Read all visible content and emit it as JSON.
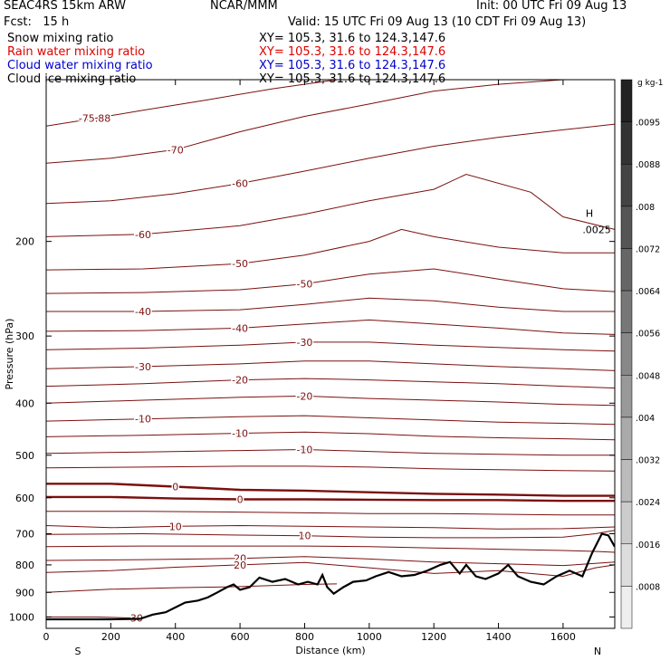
{
  "header": {
    "model": "SEAC4RS 15km ARW",
    "center": "NCAR/MMM",
    "init": "Init: 00 UTC Fri 09 Aug 13",
    "fcst": "Fcst:   15 h",
    "valid": "Valid: 15 UTC Fri 09 Aug 13 (10 CDT Fri 09 Aug 13)",
    "fields": [
      {
        "name": "Snow mixing ratio",
        "xy": "XY= 105.3, 31.6 to 124.3,147.6",
        "color": "#000000"
      },
      {
        "name": "Rain water mixing ratio",
        "xy": "XY= 105.3, 31.6 to 124.3,147.6",
        "color": "#e00000"
      },
      {
        "name": "Cloud water mixing ratio",
        "xy": "XY= 105.3, 31.6 to 124.3,147.6",
        "color": "#0000cc"
      },
      {
        "name": "Cloud ice mixing ratio",
        "xy": "XY= 105.3, 31.6 to 124.3,147.6",
        "color": "#000000"
      }
    ]
  },
  "chart_data": {
    "type": "cross-section contour",
    "xlabel": "Distance (km)",
    "ylabel": "Pressure (hPa)",
    "xlim": [
      0,
      1760
    ],
    "ylim": [
      1050,
      100
    ],
    "x_ticks": [
      0,
      200,
      400,
      600,
      800,
      1000,
      1200,
      1400,
      1600
    ],
    "y_ticks": [
      200,
      300,
      400,
      500,
      600,
      700,
      800,
      900,
      1000
    ],
    "end_labels": {
      "left": "S",
      "right": "N"
    },
    "contour_color": "#7a1010",
    "contours": [
      {
        "label": "-75.88",
        "pts": [
          [
            0,
            122
          ],
          [
            150,
            118
          ],
          [
            300,
            114
          ],
          [
            500,
            109
          ],
          [
            700,
            104
          ],
          [
            900,
            100
          ]
        ]
      },
      {
        "label": "-70",
        "pts": [
          [
            0,
            143
          ],
          [
            200,
            140
          ],
          [
            400,
            135
          ],
          [
            600,
            125
          ],
          [
            800,
            117
          ],
          [
            1000,
            111
          ],
          [
            1200,
            105
          ],
          [
            1400,
            102
          ],
          [
            1600,
            100
          ]
        ]
      },
      {
        "label": "-60",
        "pts": [
          [
            0,
            170
          ],
          [
            200,
            168
          ],
          [
            400,
            163
          ],
          [
            600,
            156
          ],
          [
            800,
            148
          ],
          [
            1000,
            140
          ],
          [
            1200,
            133
          ],
          [
            1400,
            128
          ],
          [
            1600,
            124
          ],
          [
            1760,
            121
          ]
        ]
      },
      {
        "label": "-60",
        "pts": [
          [
            0,
            196
          ],
          [
            300,
            194
          ],
          [
            600,
            187
          ],
          [
            800,
            178
          ],
          [
            1000,
            168
          ],
          [
            1200,
            160
          ],
          [
            1300,
            150
          ],
          [
            1500,
            162
          ],
          [
            1600,
            180
          ],
          [
            1760,
            190
          ]
        ]
      },
      {
        "label": "-50",
        "pts": [
          [
            0,
            226
          ],
          [
            300,
            225
          ],
          [
            600,
            220
          ],
          [
            800,
            212
          ],
          [
            1000,
            200
          ],
          [
            1100,
            190
          ],
          [
            1200,
            196
          ],
          [
            1400,
            205
          ],
          [
            1600,
            210
          ],
          [
            1760,
            210
          ]
        ]
      },
      {
        "label": "-50",
        "pts": [
          [
            0,
            250
          ],
          [
            300,
            249
          ],
          [
            600,
            246
          ],
          [
            800,
            240
          ],
          [
            1000,
            230
          ],
          [
            1200,
            225
          ],
          [
            1400,
            235
          ],
          [
            1600,
            245
          ],
          [
            1760,
            248
          ]
        ]
      },
      {
        "label": "-40",
        "pts": [
          [
            0,
            270
          ],
          [
            300,
            270
          ],
          [
            600,
            268
          ],
          [
            800,
            262
          ],
          [
            1000,
            255
          ],
          [
            1200,
            258
          ],
          [
            1400,
            265
          ],
          [
            1600,
            270
          ],
          [
            1760,
            270
          ]
        ]
      },
      {
        "label": "-40",
        "pts": [
          [
            0,
            294
          ],
          [
            300,
            293
          ],
          [
            600,
            290
          ],
          [
            800,
            285
          ],
          [
            1000,
            280
          ],
          [
            1200,
            285
          ],
          [
            1400,
            290
          ],
          [
            1600,
            296
          ],
          [
            1760,
            298
          ]
        ]
      },
      {
        "label": "-30",
        "pts": [
          [
            0,
            318
          ],
          [
            300,
            316
          ],
          [
            600,
            312
          ],
          [
            800,
            308
          ],
          [
            1000,
            308
          ],
          [
            1200,
            312
          ],
          [
            1400,
            315
          ],
          [
            1600,
            318
          ],
          [
            1760,
            320
          ]
        ]
      },
      {
        "label": "-30",
        "pts": [
          [
            0,
            345
          ],
          [
            300,
            342
          ],
          [
            600,
            338
          ],
          [
            800,
            334
          ],
          [
            1000,
            334
          ],
          [
            1200,
            338
          ],
          [
            1400,
            342
          ],
          [
            1600,
            345
          ],
          [
            1760,
            348
          ]
        ]
      },
      {
        "label": "-20",
        "pts": [
          [
            0,
            372
          ],
          [
            300,
            368
          ],
          [
            600,
            362
          ],
          [
            800,
            360
          ],
          [
            1000,
            362
          ],
          [
            1200,
            365
          ],
          [
            1400,
            368
          ],
          [
            1600,
            372
          ],
          [
            1760,
            375
          ]
        ]
      },
      {
        "label": "-20",
        "pts": [
          [
            0,
            400
          ],
          [
            300,
            395
          ],
          [
            600,
            390
          ],
          [
            800,
            388
          ],
          [
            1000,
            392
          ],
          [
            1200,
            395
          ],
          [
            1400,
            398
          ],
          [
            1600,
            402
          ],
          [
            1760,
            404
          ]
        ]
      },
      {
        "label": "-10",
        "pts": [
          [
            0,
            432
          ],
          [
            300,
            428
          ],
          [
            600,
            424
          ],
          [
            800,
            422
          ],
          [
            1000,
            426
          ],
          [
            1200,
            430
          ],
          [
            1400,
            434
          ],
          [
            1600,
            436
          ],
          [
            1760,
            438
          ]
        ]
      },
      {
        "label": "-10",
        "pts": [
          [
            0,
            462
          ],
          [
            300,
            459
          ],
          [
            600,
            455
          ],
          [
            800,
            453
          ],
          [
            1000,
            456
          ],
          [
            1200,
            461
          ],
          [
            1400,
            464
          ],
          [
            1600,
            466
          ],
          [
            1760,
            468
          ]
        ]
      },
      {
        "label": "-10",
        "pts": [
          [
            0,
            496
          ],
          [
            300,
            493
          ],
          [
            600,
            490
          ],
          [
            800,
            488
          ],
          [
            1000,
            492
          ],
          [
            1200,
            496
          ],
          [
            1400,
            498
          ],
          [
            1600,
            500
          ],
          [
            1760,
            500
          ]
        ]
      },
      {
        "label": "",
        "pts": [
          [
            0,
            528
          ],
          [
            300,
            526
          ],
          [
            600,
            524
          ],
          [
            800,
            524
          ],
          [
            1000,
            526
          ],
          [
            1200,
            530
          ],
          [
            1400,
            532
          ],
          [
            1600,
            534
          ],
          [
            1760,
            535
          ]
        ]
      },
      {
        "label": "0",
        "bold": true,
        "pts": [
          [
            0,
            565
          ],
          [
            200,
            565
          ],
          [
            400,
            572
          ],
          [
            600,
            580
          ],
          [
            800,
            582
          ],
          [
            1000,
            586
          ],
          [
            1200,
            590
          ],
          [
            1400,
            592
          ],
          [
            1600,
            595
          ],
          [
            1760,
            595
          ]
        ]
      },
      {
        "label": "0",
        "bold": true,
        "pts": [
          [
            0,
            598
          ],
          [
            200,
            598
          ],
          [
            400,
            602
          ],
          [
            600,
            604
          ],
          [
            800,
            604
          ],
          [
            1000,
            605
          ],
          [
            1200,
            606
          ],
          [
            1400,
            606
          ],
          [
            1600,
            608
          ],
          [
            1760,
            608
          ]
        ]
      },
      {
        "label": "",
        "pts": [
          [
            0,
            636
          ],
          [
            300,
            636
          ],
          [
            600,
            638
          ],
          [
            800,
            640
          ],
          [
            1000,
            642
          ],
          [
            1200,
            642
          ],
          [
            1400,
            644
          ],
          [
            1600,
            646
          ],
          [
            1760,
            646
          ]
        ]
      },
      {
        "label": "10",
        "pts": [
          [
            0,
            676
          ],
          [
            200,
            682
          ],
          [
            400,
            678
          ],
          [
            600,
            676
          ],
          [
            800,
            678
          ],
          [
            1000,
            680
          ],
          [
            1200,
            682
          ],
          [
            1400,
            686
          ],
          [
            1600,
            685
          ],
          [
            1760,
            680
          ]
        ]
      },
      {
        "label": "10",
        "pts": [
          [
            0,
            702
          ],
          [
            300,
            700
          ],
          [
            600,
            704
          ],
          [
            800,
            706
          ],
          [
            1000,
            710
          ],
          [
            1200,
            712
          ],
          [
            1400,
            712
          ],
          [
            1600,
            710
          ],
          [
            1700,
            700
          ],
          [
            1760,
            690
          ]
        ]
      },
      {
        "label": "",
        "pts": [
          [
            0,
            740
          ],
          [
            300,
            738
          ],
          [
            600,
            738
          ],
          [
            800,
            738
          ],
          [
            1000,
            740
          ],
          [
            1200,
            744
          ],
          [
            1400,
            748
          ],
          [
            1600,
            752
          ],
          [
            1700,
            755
          ],
          [
            1760,
            758
          ]
        ]
      },
      {
        "label": "20",
        "pts": [
          [
            0,
            785
          ],
          [
            300,
            782
          ],
          [
            600,
            778
          ],
          [
            800,
            772
          ],
          [
            1000,
            780
          ],
          [
            1200,
            790
          ],
          [
            1400,
            796
          ],
          [
            1600,
            802
          ],
          [
            1700,
            795
          ],
          [
            1760,
            790
          ]
        ]
      },
      {
        "label": "20",
        "pts": [
          [
            0,
            826
          ],
          [
            200,
            820
          ],
          [
            400,
            808
          ],
          [
            600,
            800
          ],
          [
            800,
            792
          ],
          [
            1000,
            810
          ],
          [
            1200,
            830
          ],
          [
            1400,
            820
          ],
          [
            1600,
            840
          ],
          [
            1700,
            810
          ],
          [
            1760,
            800
          ]
        ]
      },
      {
        "label": "",
        "pts": [
          [
            0,
            900
          ],
          [
            200,
            888
          ],
          [
            400,
            882
          ],
          [
            600,
            878
          ],
          [
            800,
            870
          ],
          [
            900,
            868
          ]
        ]
      },
      {
        "label": "30",
        "pts": [
          [
            0,
            1000
          ],
          [
            150,
            1000
          ],
          [
            280,
            1005
          ]
        ]
      }
    ],
    "terrain": [
      [
        0,
        1010
      ],
      [
        100,
        1010
      ],
      [
        200,
        1010
      ],
      [
        290,
        1008
      ],
      [
        330,
        990
      ],
      [
        370,
        980
      ],
      [
        400,
        960
      ],
      [
        430,
        940
      ],
      [
        470,
        932
      ],
      [
        500,
        920
      ],
      [
        530,
        900
      ],
      [
        560,
        880
      ],
      [
        580,
        870
      ],
      [
        600,
        890
      ],
      [
        630,
        880
      ],
      [
        660,
        845
      ],
      [
        700,
        860
      ],
      [
        740,
        850
      ],
      [
        780,
        870
      ],
      [
        810,
        860
      ],
      [
        840,
        870
      ],
      [
        855,
        835
      ],
      [
        870,
        880
      ],
      [
        890,
        905
      ],
      [
        920,
        880
      ],
      [
        950,
        860
      ],
      [
        990,
        855
      ],
      [
        1020,
        840
      ],
      [
        1060,
        825
      ],
      [
        1100,
        840
      ],
      [
        1140,
        835
      ],
      [
        1180,
        820
      ],
      [
        1220,
        800
      ],
      [
        1250,
        790
      ],
      [
        1280,
        830
      ],
      [
        1300,
        800
      ],
      [
        1330,
        840
      ],
      [
        1360,
        850
      ],
      [
        1400,
        830
      ],
      [
        1430,
        800
      ],
      [
        1460,
        840
      ],
      [
        1500,
        860
      ],
      [
        1540,
        870
      ],
      [
        1580,
        840
      ],
      [
        1620,
        820
      ],
      [
        1660,
        840
      ],
      [
        1690,
        760
      ],
      [
        1720,
        700
      ],
      [
        1740,
        705
      ],
      [
        1760,
        740
      ]
    ],
    "labels_extra": [
      {
        "text": "H",
        "x": 1670,
        "p": 180
      },
      {
        "text": ".0025",
        "x": 1660,
        "p": 193
      }
    ],
    "colorbar": {
      "title": "g kg-1",
      "ticks": [
        ".0095",
        ".0088",
        ".008",
        ".0072",
        ".0064",
        ".0056",
        ".0048",
        ".004",
        ".0032",
        ".0024",
        ".0016",
        ".0008"
      ],
      "shades": [
        "#222222",
        "#333333",
        "#444444",
        "#555555",
        "#666666",
        "#777777",
        "#888888",
        "#999999",
        "#aaaaaa",
        "#bbbbbb",
        "#cccccc",
        "#dddddd",
        "#eeeeee"
      ]
    }
  }
}
